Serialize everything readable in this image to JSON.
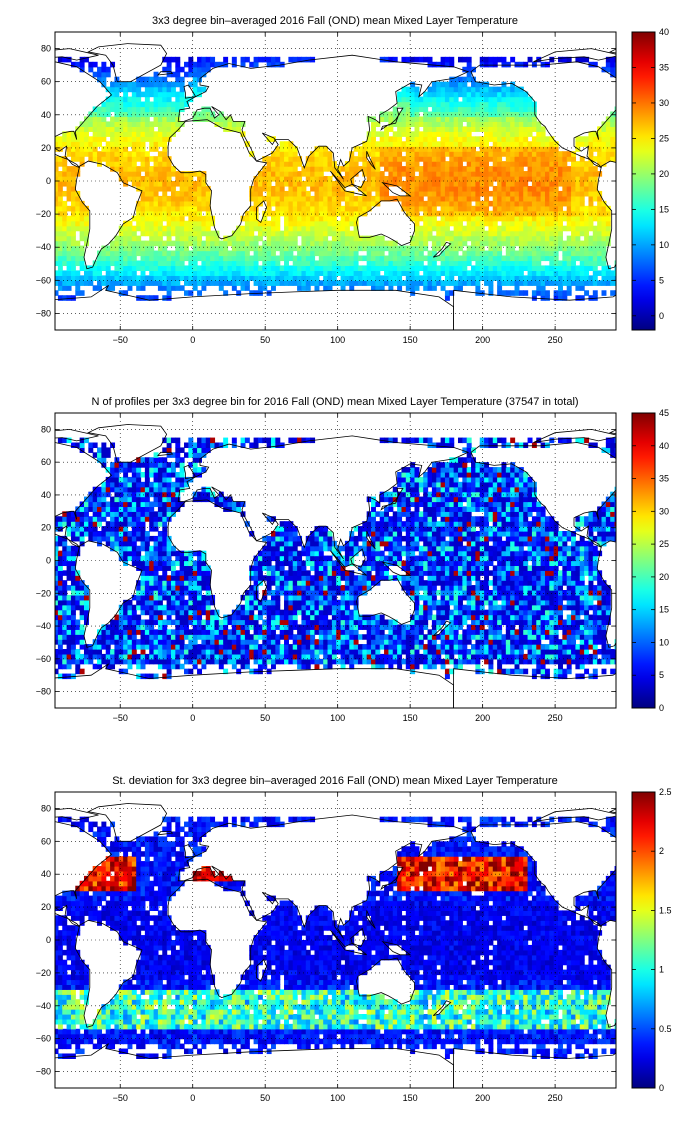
{
  "chart_data": [
    {
      "type": "heatmap",
      "title": "3x3 degree bin–averaged 2016 Fall (OND) mean Mixed Layer Temperature",
      "xlim": [
        -95,
        292
      ],
      "ylim": [
        -90,
        90
      ],
      "xticks": [
        -50,
        0,
        50,
        100,
        150,
        200,
        250
      ],
      "yticks": [
        80,
        60,
        40,
        20,
        0,
        -20,
        -40,
        -60,
        -80
      ],
      "clim": [
        -2,
        40
      ],
      "cticks": [
        0,
        5,
        10,
        15,
        20,
        25,
        30,
        35,
        40
      ],
      "colormap": "jet",
      "grid": true,
      "variable": "temperature"
    },
    {
      "type": "heatmap",
      "title": "N of profiles per 3x3 degree bin for 2016 Fall (OND) mean Mixed Layer Temperature  (37547 in total)",
      "xlim": [
        -95,
        292
      ],
      "ylim": [
        -90,
        90
      ],
      "xticks": [
        -50,
        0,
        50,
        100,
        150,
        200,
        250
      ],
      "yticks": [
        80,
        60,
        40,
        20,
        0,
        -20,
        -40,
        -60,
        -80
      ],
      "clim": [
        0,
        45
      ],
      "cticks": [
        0,
        5,
        10,
        15,
        20,
        25,
        30,
        35,
        40,
        45
      ],
      "colormap": "jet",
      "grid": true,
      "variable": "count"
    },
    {
      "type": "heatmap",
      "title": "St. deviation for 3x3 degree bin–averaged 2016 Fall (OND) mean Mixed Layer Temperature",
      "xlim": [
        -95,
        292
      ],
      "ylim": [
        -90,
        90
      ],
      "xticks": [
        -50,
        0,
        50,
        100,
        150,
        200,
        250
      ],
      "yticks": [
        80,
        60,
        40,
        20,
        0,
        -20,
        -40,
        -60,
        -80
      ],
      "clim": [
        0,
        2.5
      ],
      "cticks": [
        0,
        0.5,
        1,
        1.5,
        2,
        2.5
      ],
      "colormap": "jet",
      "grid": true,
      "variable": "stdev"
    }
  ]
}
